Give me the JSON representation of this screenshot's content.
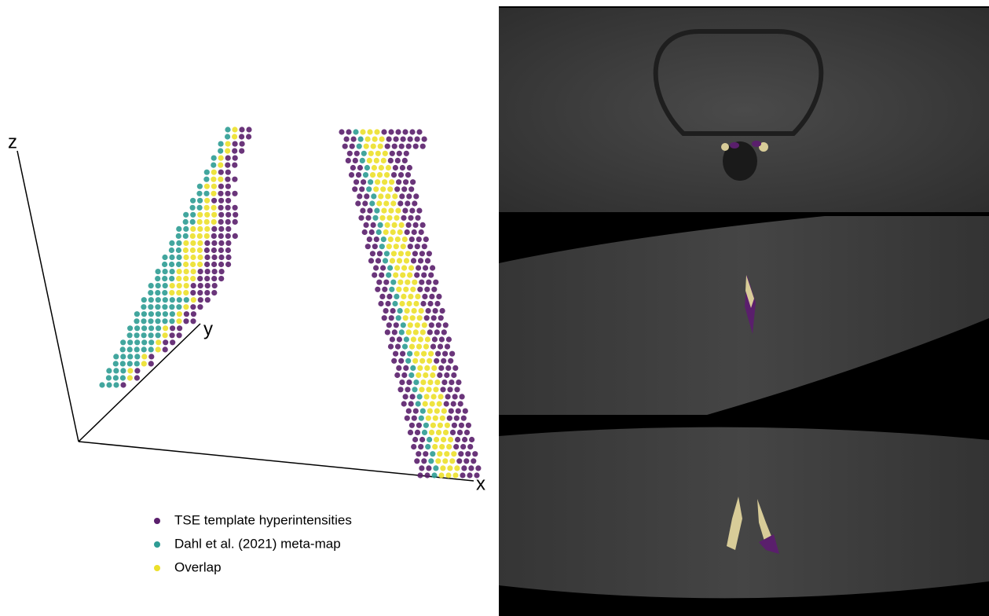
{
  "figure": {
    "axes": {
      "x": "x",
      "y": "y",
      "z": "z"
    },
    "legend": [
      {
        "label": "TSE template hyperintensities",
        "color": "#5a1f6c"
      },
      {
        "label": "Dahl et al. (2021) meta-map",
        "color": "#2e9c94"
      },
      {
        "label": "Overlap",
        "color": "#ece02a"
      }
    ]
  }
}
